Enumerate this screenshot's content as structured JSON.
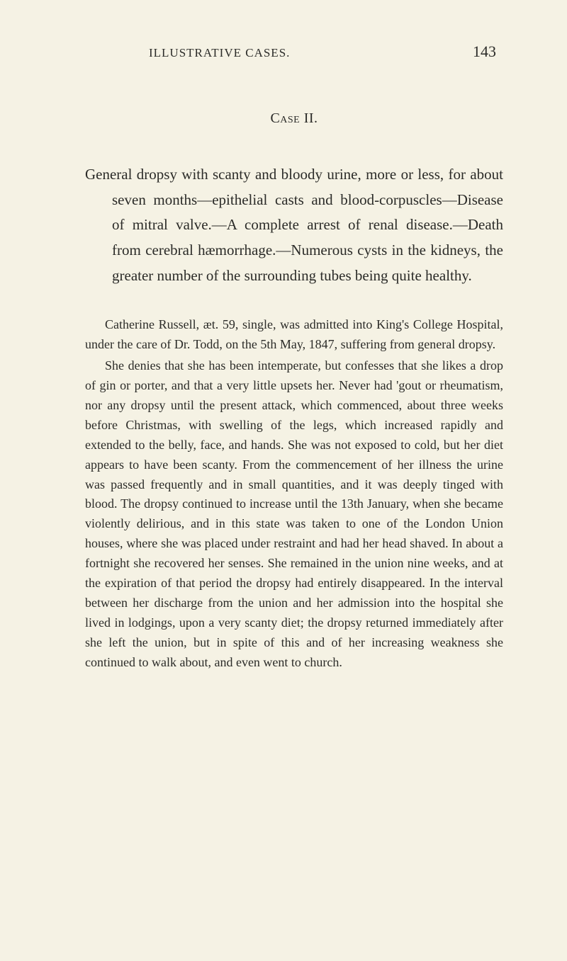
{
  "page": {
    "running_head": "ILLUSTRATIVE CASES.",
    "page_number": "143",
    "background_color": "#f5f2e4",
    "text_color": "#2b2b28"
  },
  "case": {
    "title": "Case II.",
    "summary": "General dropsy with scanty and bloody urine, more or less, for about seven months—epithelial casts and blood-corpuscles—Disease of mitral valve.—A complete arrest of renal disease.—Death from cerebral hæmorrhage.—Numerous cysts in the kidneys, the greater number of the surrounding tubes being quite healthy."
  },
  "body": {
    "p1": "Catherine Russell, æt. 59, single, was admitted into King's College Hospital, under the care of Dr. Todd, on the 5th May, 1847, suffering from general dropsy.",
    "p2": "She denies that she has been intemperate, but confesses that she likes a drop of gin or porter, and that a very little upsets her. Never had 'gout or rheumatism, nor any dropsy until the present attack, which commenced, about three weeks before Christmas, with swelling of the legs, which increased rapidly and extended to the belly, face, and hands. She was not exposed to cold, but her diet appears to have been scanty. From the commencement of her illness the urine was passed frequently and in small quantities, and it was deeply tinged with blood. The dropsy continued to increase until the 13th January, when she became violently delirious, and in this state was taken to one of the London Union houses, where she was placed under restraint and had her head shaved. In about a fortnight she recovered her senses. She remained in the union nine weeks, and at the expiration of that period the dropsy had entirely disappeared. In the interval between her discharge from the union and her admission into the hospital she lived in lodgings, upon a very scanty diet; the dropsy returned immediately after she left the union, but in spite of this and of her increasing weakness she continued to walk about, and even went to church."
  },
  "typography": {
    "body_font": "Georgia, Times New Roman, serif",
    "running_head_fontsize": 17,
    "page_number_fontsize": 22,
    "case_title_fontsize": 20,
    "summary_fontsize": 21,
    "body_fontsize": 18,
    "summary_line_height": 1.7,
    "body_line_height": 1.55
  }
}
